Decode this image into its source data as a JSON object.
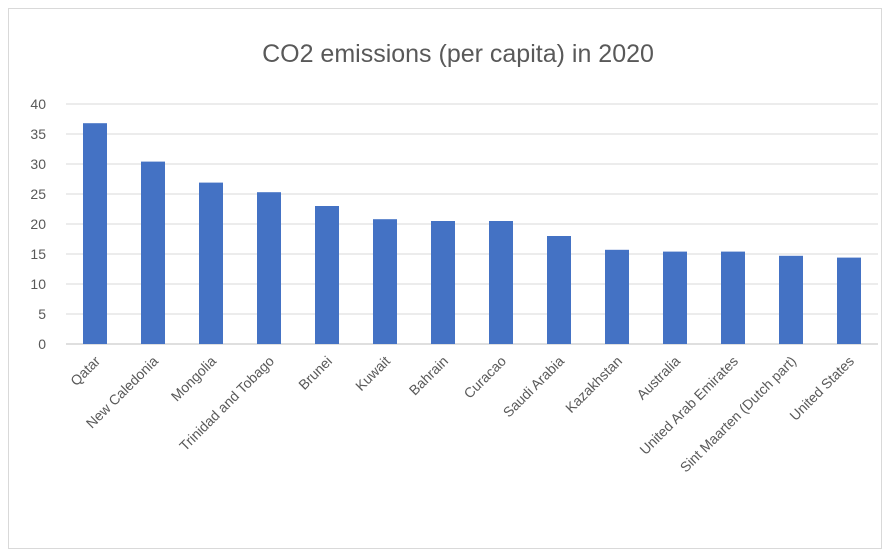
{
  "chart_data": {
    "type": "bar",
    "title": "CO2 emissions (per capita) in 2020",
    "xlabel": "",
    "ylabel": "",
    "categories": [
      "Qatar",
      "New Caledonia",
      "Mongolia",
      "Trinidad and Tobago",
      "Brunei",
      "Kuwait",
      "Bahrain",
      "Curacao",
      "Saudi Arabia",
      "Kazakhstan",
      "Australia",
      "United Arab Emirates",
      "Sint Maarten (Dutch part)",
      "United States"
    ],
    "values": [
      36.8,
      30.4,
      26.9,
      25.3,
      23.0,
      20.8,
      20.5,
      20.5,
      18.0,
      15.7,
      15.4,
      15.4,
      14.7,
      14.4
    ],
    "ylim": [
      0,
      40
    ],
    "yticks": [
      0,
      5,
      10,
      15,
      20,
      25,
      30,
      35,
      40
    ],
    "grid": true,
    "legend": "none",
    "colors": {
      "bar": "#4472C4",
      "grid": "#d9d9d9",
      "text": "#595959"
    }
  }
}
